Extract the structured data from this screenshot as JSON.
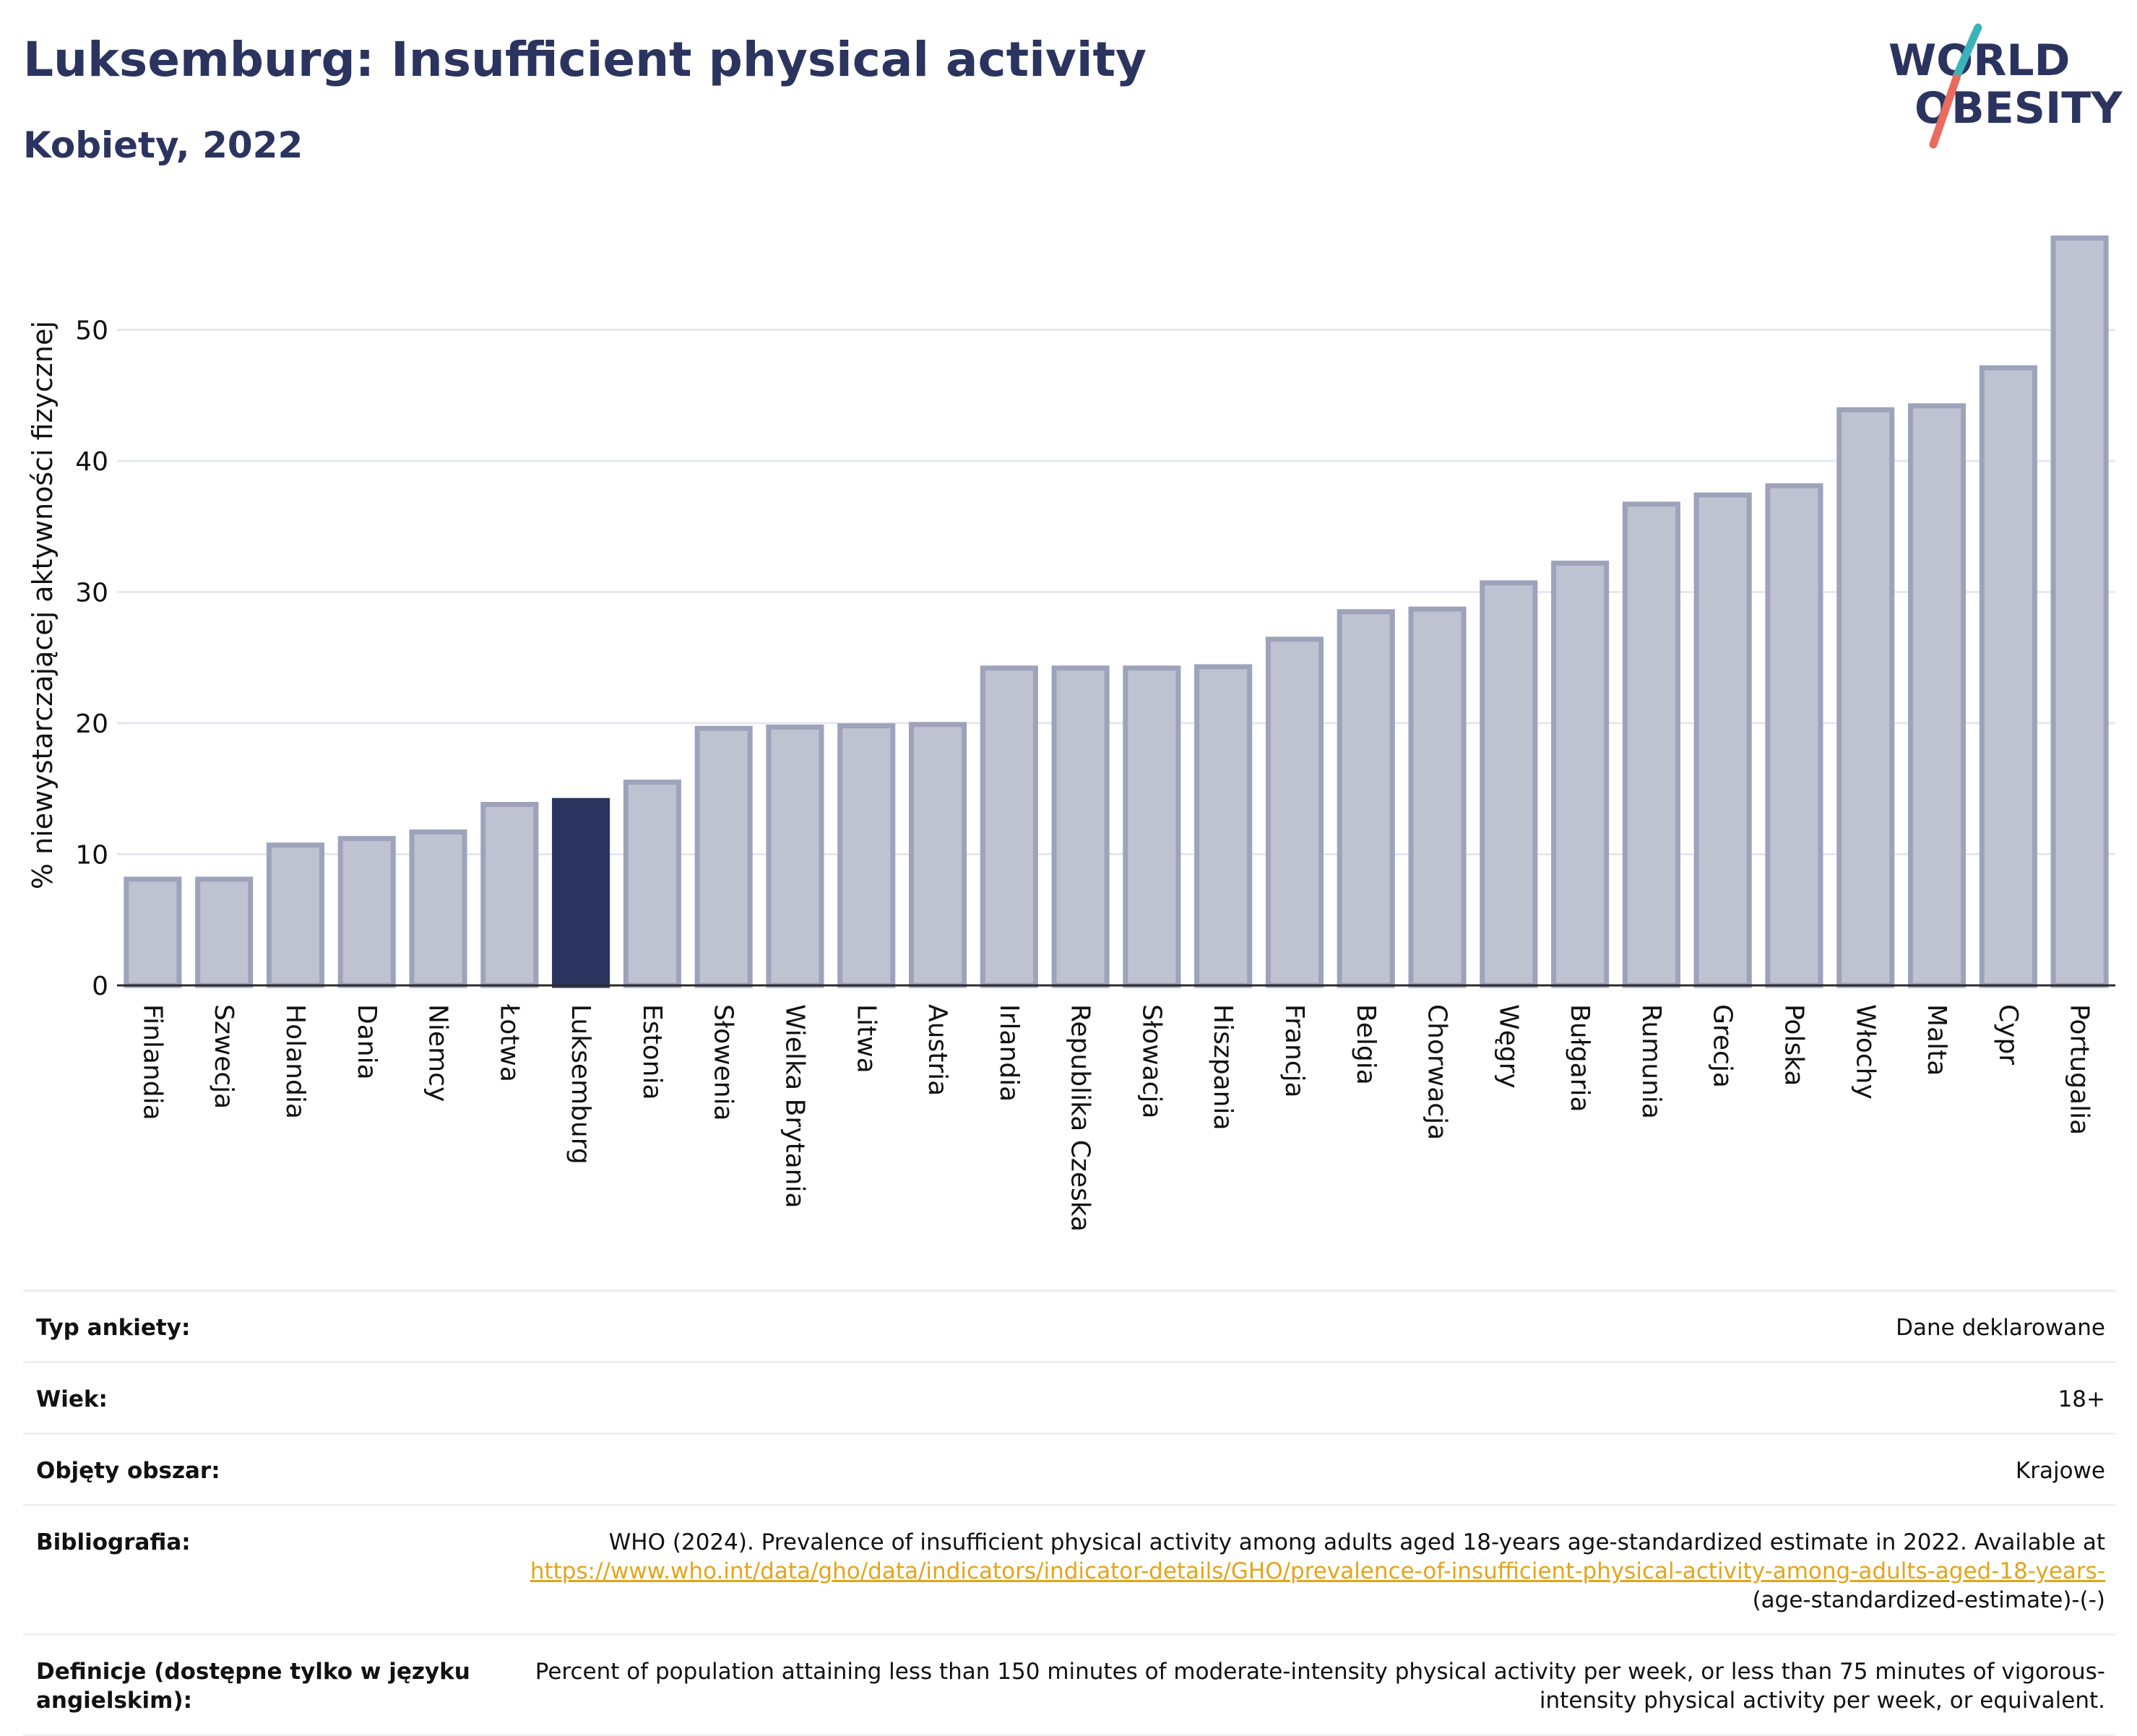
{
  "header": {
    "title": "Luksemburg: Insufficient physical activity",
    "subtitle": "Kobiety, 2022"
  },
  "logo": {
    "line1": "WORLD",
    "line2": "OBESITY"
  },
  "colors": {
    "highlight_bar": "#2b345f",
    "other_bar_fill": "#bfc2d0",
    "other_bar_stroke": "#9ea3bb",
    "gridline": "#e6e8ef",
    "axis": "#2b2b2b",
    "title": "#2b345f",
    "link": "#e5a41a",
    "logo_teal": "#3bb3b9",
    "logo_red": "#ea6b5e"
  },
  "chart_data": {
    "type": "bar",
    "title": "Luksemburg: Insufficient physical activity",
    "subtitle": "Kobiety, 2022",
    "xlabel": "",
    "ylabel": "% niewystarczającej aktywności fizycznej",
    "ylim": [
      0,
      58
    ],
    "yticks": [
      0,
      10,
      20,
      30,
      40,
      50
    ],
    "grid": true,
    "highlight": "Luksemburg",
    "categories": [
      "Finlandia",
      "Szwecja",
      "Holandia",
      "Dania",
      "Niemcy",
      "Łotwa",
      "Luksemburg",
      "Estonia",
      "Słowenia",
      "Wielka Brytania",
      "Litwa",
      "Austria",
      "Irlandia",
      "Republika Czeska",
      "Słowacja",
      "Hiszpania",
      "Francja",
      "Belgia",
      "Chorwacja",
      "Węgry",
      "Bułgaria",
      "Rumunia",
      "Grecja",
      "Polska",
      "Włochy",
      "Malta",
      "Cypr",
      "Portugalia"
    ],
    "values": [
      8.1,
      8.1,
      10.7,
      11.2,
      11.7,
      13.8,
      14.1,
      15.5,
      19.6,
      19.7,
      19.8,
      19.9,
      24.2,
      24.2,
      24.2,
      24.3,
      26.4,
      28.5,
      28.7,
      30.7,
      32.2,
      36.7,
      37.4,
      38.1,
      43.9,
      44.2,
      47.1,
      57.0
    ]
  },
  "info_table": [
    {
      "label": "Typ ankiety:",
      "value": "Dane deklarowane"
    },
    {
      "label": "Wiek:",
      "value": "18+"
    },
    {
      "label": "Objęty obszar:",
      "value": "Krajowe"
    },
    {
      "label": "Bibliografia:",
      "value_text": "WHO (2024). Prevalence of insufficient physical activity among adults aged 18-years age-standardized estimate in 2022. Available at",
      "value_link": "https://www.who.int/data/gho/data/indicators/indicator-details/GHO/prevalence-of-insufficient-physical-activity-among-adults-aged-18-years-",
      "value_suffix": "(age-standardized-estimate)-(-)"
    },
    {
      "label": "Definicje (dostępne tylko w języku angielskim):",
      "value": "Percent of population attaining less than 150 minutes of moderate-intensity physical activity per week, or less than 75 minutes of vigorous-intensity physical activity per week, or equivalent."
    }
  ]
}
